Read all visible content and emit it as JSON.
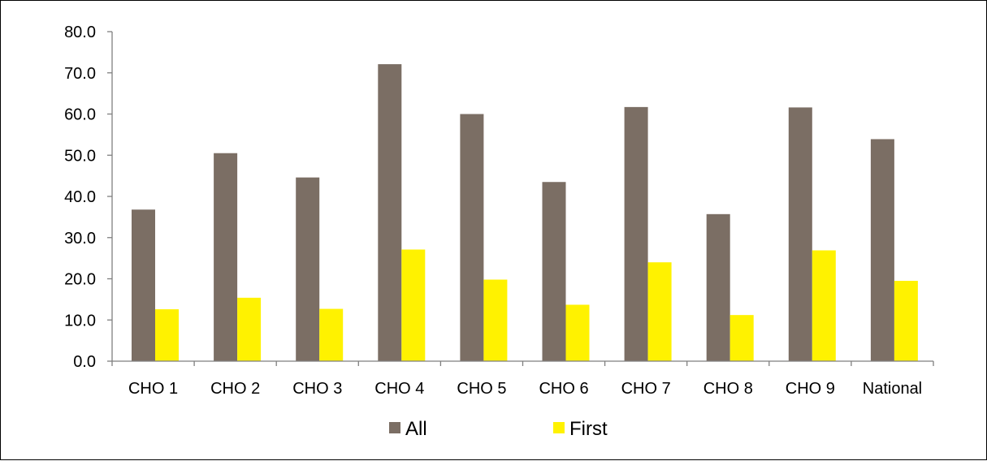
{
  "chart_data": {
    "type": "bar",
    "categories": [
      "CHO 1",
      "CHO 2",
      "CHO 3",
      "CHO 4",
      "CHO 5",
      "CHO 6",
      "CHO 7",
      "CHO 8",
      "CHO 9",
      "National"
    ],
    "series": [
      {
        "name": "All",
        "color": "#7B6E64",
        "values": [
          36.8,
          50.5,
          44.6,
          72.1,
          60.0,
          43.5,
          61.7,
          35.7,
          61.6,
          53.9
        ]
      },
      {
        "name": "First",
        "color": "#FFF200",
        "values": [
          12.6,
          15.4,
          12.7,
          27.1,
          19.8,
          13.7,
          24.0,
          11.2,
          26.9,
          19.5
        ]
      }
    ],
    "ylim": [
      0,
      80
    ],
    "yticks": [
      "0.0",
      "10.0",
      "20.0",
      "30.0",
      "40.0",
      "50.0",
      "60.0",
      "70.0",
      "80.0"
    ],
    "title": "",
    "xlabel": "",
    "ylabel": "",
    "grid": false,
    "legend_position": "bottom"
  }
}
